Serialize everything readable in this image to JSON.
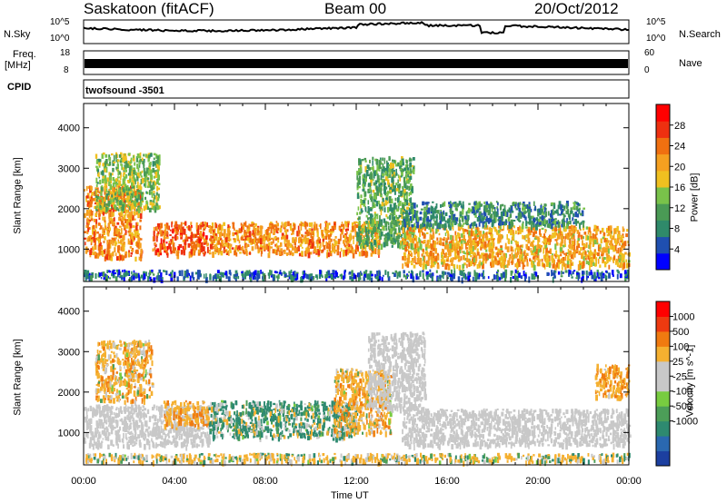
{
  "header": {
    "station": "Saskatoon (fitACF)",
    "beam": "Beam 00",
    "date": "20/Oct/2012"
  },
  "param_panels": {
    "nsky_label": "N.Sky",
    "nsky_ticks": [
      "10^5",
      "10^0"
    ],
    "freq_label": "Freq.",
    "freq_unit": "[MHz]",
    "freq_ticks": [
      "18",
      "8"
    ],
    "nsearch_label": "N.Search",
    "nsearch_ticks": [
      "10^5",
      "10^0"
    ],
    "nave_label": "Nave",
    "nave_ticks": [
      "60",
      "0"
    ],
    "cpid_label": "CPID",
    "cpid_value": "twofsound -3501"
  },
  "colors": {
    "power_scale": [
      "#0000ff",
      "#1f4fb0",
      "#2f8a6a",
      "#4a9a55",
      "#79c24a",
      "#f0c020",
      "#f5a020",
      "#f07010",
      "#ee3010",
      "#ff0000"
    ],
    "velocity_scale": [
      "#1c3fa0",
      "#2a68b0",
      "#2e8a70",
      "#4c9e58",
      "#78cc40",
      "#c8c8c8",
      "#c8c8c8",
      "#f5b030",
      "#f07a10",
      "#ee3a10",
      "#ff0000"
    ],
    "ground_scatter": "#c8c8c8"
  },
  "chart_data": [
    {
      "type": "heatmap",
      "panel": "power",
      "xlabel": "Time UT",
      "ylabel": "Slant Range [km]",
      "x_ticks": [
        "00:00",
        "04:00",
        "08:00",
        "12:00",
        "16:00",
        "20:00",
        "00:00"
      ],
      "xlim_hours": [
        0,
        24
      ],
      "ylim": [
        200,
        4600
      ],
      "y_ticks": [
        1000,
        2000,
        3000,
        4000
      ],
      "colorbar": {
        "label": "Power [dB]",
        "range": [
          0,
          32
        ],
        "ticks": [
          4,
          8,
          12,
          16,
          20,
          24,
          28
        ]
      },
      "regions": [
        {
          "t": [
            0.0,
            2.5
          ],
          "r": [
            800,
            2600
          ],
          "level": 22
        },
        {
          "t": [
            0.5,
            3.3
          ],
          "r": [
            2000,
            3400
          ],
          "level": 14
        },
        {
          "t": [
            3.0,
            5.5
          ],
          "r": [
            900,
            1700
          ],
          "level": 25
        },
        {
          "t": [
            5.5,
            13.0
          ],
          "r": [
            900,
            1700
          ],
          "level": 22
        },
        {
          "t": [
            12.0,
            14.5
          ],
          "r": [
            1100,
            3300
          ],
          "level": 12
        },
        {
          "t": [
            14.0,
            24.0
          ],
          "r": [
            600,
            1600
          ],
          "level": 20
        },
        {
          "t": [
            14.0,
            22.0
          ],
          "r": [
            1600,
            2200
          ],
          "level": 9
        },
        {
          "t": [
            0.0,
            24.0
          ],
          "r": [
            300,
            500
          ],
          "level": 6
        }
      ]
    },
    {
      "type": "heatmap",
      "panel": "velocity",
      "xlabel": "Time UT",
      "ylabel": "Slant Range [km]",
      "x_ticks": [
        "00:00",
        "04:00",
        "08:00",
        "12:00",
        "16:00",
        "20:00",
        "00:00"
      ],
      "xlim_hours": [
        0,
        24
      ],
      "ylim": [
        200,
        4600
      ],
      "y_ticks": [
        1000,
        2000,
        3000,
        4000
      ],
      "colorbar": {
        "label": "Velocity [m s^-1]",
        "range": [
          -1200,
          1200
        ],
        "ticks": [
          1000,
          500,
          100,
          25,
          -25,
          -100,
          -500,
          -1000
        ]
      },
      "regions": [
        {
          "t": [
            0.0,
            5.5
          ],
          "r": [
            700,
            1700
          ],
          "kind": "ground"
        },
        {
          "t": [
            0.5,
            3.0
          ],
          "r": [
            1800,
            3300
          ],
          "velocity": -300
        },
        {
          "t": [
            3.5,
            5.5
          ],
          "r": [
            1200,
            1800
          ],
          "velocity": -400
        },
        {
          "t": [
            5.5,
            12.0
          ],
          "r": [
            900,
            1800
          ],
          "velocity": 150
        },
        {
          "t": [
            11.0,
            13.5
          ],
          "r": [
            1000,
            2600
          ],
          "velocity": -300
        },
        {
          "t": [
            12.5,
            15.0
          ],
          "r": [
            1600,
            3500
          ],
          "kind": "ground"
        },
        {
          "t": [
            14.0,
            24.0
          ],
          "r": [
            700,
            1600
          ],
          "kind": "ground"
        },
        {
          "t": [
            22.5,
            24.0
          ],
          "r": [
            1900,
            2700
          ],
          "velocity": -400
        },
        {
          "t": [
            0.0,
            24.0
          ],
          "r": [
            300,
            500
          ],
          "velocity": -150
        }
      ]
    }
  ]
}
